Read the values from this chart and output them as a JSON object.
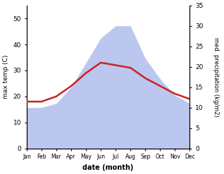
{
  "months": [
    "Jan",
    "Feb",
    "Mar",
    "Apr",
    "May",
    "Jun",
    "Jul",
    "Aug",
    "Sep",
    "Oct",
    "Nov",
    "Dec"
  ],
  "temp_max": [
    18,
    18,
    20,
    24,
    29,
    33,
    32,
    31,
    27,
    24,
    21,
    19
  ],
  "precipitation": [
    10,
    10,
    11,
    15,
    21,
    27,
    30,
    30,
    22,
    17,
    13,
    11
  ],
  "temp_color": "#cc2222",
  "precip_color": "#b0beed",
  "temp_ylim": [
    0,
    55
  ],
  "precip_ylim": [
    0,
    35
  ],
  "temp_yticks": [
    0,
    10,
    20,
    30,
    40,
    50
  ],
  "precip_yticks": [
    0,
    5,
    10,
    15,
    20,
    25,
    30,
    35
  ],
  "ylabel_left": "max temp (C)",
  "ylabel_right": "med. precipitation (kg/m2)",
  "xlabel": "date (month)",
  "background_color": "#ffffff",
  "figure_width": 3.18,
  "figure_height": 2.47,
  "dpi": 100
}
